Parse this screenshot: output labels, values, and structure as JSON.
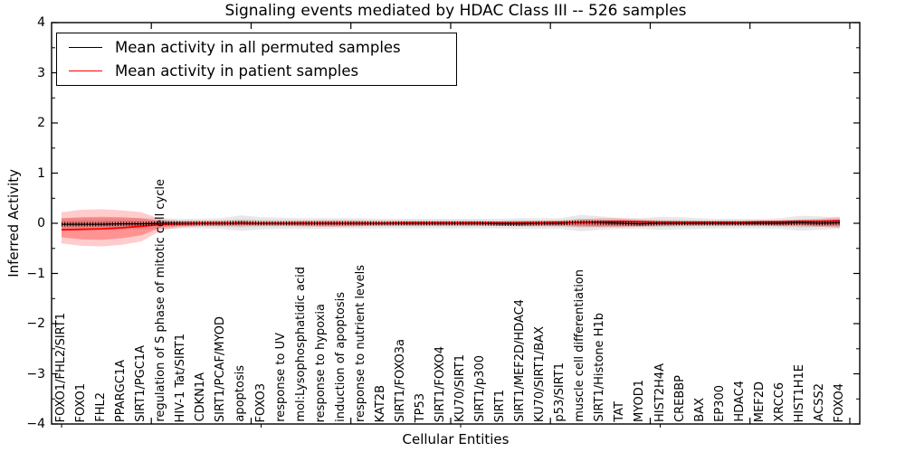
{
  "figure": {
    "title": "Signaling events mediated by HDAC Class III -- 526 samples",
    "xlabel": "Cellular Entities",
    "ylabel": "Inferred Activity"
  },
  "legend": {
    "position": "upper left",
    "items": [
      {
        "label": "Mean activity in all permuted samples",
        "color": "#000000"
      },
      {
        "label": "Mean activity in patient samples",
        "color": "#ff0000"
      }
    ]
  },
  "chart_data": {
    "type": "line",
    "title": "Signaling events mediated by HDAC Class III -- 526 samples",
    "xlabel": "Cellular Entities",
    "ylabel": "Inferred Activity",
    "ylim": [
      -4,
      4
    ],
    "ytick_labels": [
      "−4",
      "−3",
      "−2",
      "−1",
      "0",
      "1",
      "2",
      "3",
      "4"
    ],
    "grid": false,
    "legend_position": "upper left",
    "categories": [
      "FOXO1/FHL2/SIRT1",
      "FOXO1",
      "FHL2",
      "PPARGC1A",
      "SIRT1/PGC1A",
      "regulation of S phase of mitotic cell cycle",
      "HIV-1 Tat/SIRT1",
      "CDKN1A",
      "SIRT1/PCAF/MYOD",
      "apoptosis",
      "FOXO3",
      "response to UV",
      "mol:Lysophosphatidic acid",
      "response to hypoxia",
      "induction of apoptosis",
      "response to nutrient levels",
      "KAT2B",
      "SIRT1/FOXO3a",
      "TP53",
      "SIRT1/FOXO4",
      "KU70/SIRT1",
      "SIRT1/p300",
      "SIRT1",
      "SIRT1/MEF2D/HDAC4",
      "KU70/SIRT1/BAX",
      "p53/SIRT1",
      "muscle cell differentiation",
      "SIRT1/Histone H1b",
      "TAT",
      "MYOD1",
      "HIST2H4A",
      "CREBBP",
      "BAX",
      "EP300",
      "HDAC4",
      "MEF2D",
      "XRCC6",
      "HIST1H1E",
      "ACSS2",
      "FOXO4"
    ],
    "series": [
      {
        "name": "Mean activity in all permuted samples",
        "color": "#000000",
        "values": [
          -0.02,
          -0.02,
          -0.02,
          -0.01,
          -0.01,
          0.0,
          0.0,
          0.0,
          0.0,
          0.01,
          0.0,
          0.0,
          0.0,
          0.0,
          0.0,
          0.0,
          0.0,
          0.0,
          0.0,
          0.0,
          0.0,
          0.0,
          -0.01,
          -0.01,
          0.0,
          0.0,
          0.02,
          0.01,
          0.0,
          -0.01,
          0.0,
          0.0,
          0.0,
          0.0,
          0.0,
          0.0,
          0.0,
          0.01,
          0.0,
          0.01
        ]
      },
      {
        "name": "Mean activity in patient samples",
        "color": "#ff0000",
        "values": [
          -0.13,
          -0.12,
          -0.11,
          -0.09,
          -0.06,
          -0.02,
          -0.01,
          0.0,
          0.0,
          0.0,
          0.0,
          0.0,
          0.0,
          0.0,
          0.0,
          0.0,
          0.0,
          0.01,
          0.01,
          0.01,
          0.01,
          0.01,
          0.01,
          0.01,
          0.01,
          0.02,
          0.02,
          0.03,
          0.04,
          0.03,
          0.02,
          0.02,
          0.02,
          0.02,
          0.02,
          0.03,
          0.03,
          0.04,
          0.04,
          0.05
        ]
      }
    ],
    "bands": {
      "permuted": {
        "upper": [
          0.1,
          0.1,
          0.1,
          0.1,
          0.1,
          0.1,
          0.09,
          0.09,
          0.1,
          0.16,
          0.12,
          0.11,
          0.1,
          0.1,
          0.1,
          0.1,
          0.09,
          0.09,
          0.09,
          0.09,
          0.09,
          0.09,
          0.09,
          0.1,
          0.1,
          0.1,
          0.17,
          0.14,
          0.1,
          0.1,
          0.13,
          0.12,
          0.1,
          0.09,
          0.09,
          0.09,
          0.1,
          0.15,
          0.14,
          0.1
        ],
        "lower": [
          -0.14,
          -0.14,
          -0.13,
          -0.12,
          -0.12,
          -0.11,
          -0.1,
          -0.1,
          -0.11,
          -0.15,
          -0.12,
          -0.11,
          -0.11,
          -0.11,
          -0.1,
          -0.1,
          -0.1,
          -0.1,
          -0.1,
          -0.1,
          -0.1,
          -0.1,
          -0.1,
          -0.11,
          -0.11,
          -0.11,
          -0.16,
          -0.13,
          -0.11,
          -0.11,
          -0.13,
          -0.12,
          -0.11,
          -0.1,
          -0.1,
          -0.1,
          -0.11,
          -0.15,
          -0.13,
          -0.11
        ]
      },
      "patient_outer": {
        "upper": [
          0.22,
          0.27,
          0.28,
          0.26,
          0.22,
          0.08,
          0.05,
          0.05,
          0.05,
          0.05,
          0.04,
          0.04,
          0.05,
          0.06,
          0.06,
          0.05,
          0.04,
          0.04,
          0.04,
          0.04,
          0.04,
          0.04,
          0.04,
          0.05,
          0.05,
          0.06,
          0.08,
          0.1,
          0.1,
          0.08,
          0.06,
          0.05,
          0.05,
          0.05,
          0.05,
          0.05,
          0.06,
          0.07,
          0.09,
          0.13
        ],
        "lower": [
          -0.4,
          -0.45,
          -0.46,
          -0.43,
          -0.36,
          -0.14,
          -0.08,
          -0.06,
          -0.06,
          -0.06,
          -0.05,
          -0.05,
          -0.06,
          -0.07,
          -0.07,
          -0.06,
          -0.05,
          -0.05,
          -0.05,
          -0.05,
          -0.05,
          -0.05,
          -0.05,
          -0.06,
          -0.06,
          -0.06,
          -0.07,
          -0.08,
          -0.08,
          -0.07,
          -0.06,
          -0.05,
          -0.05,
          -0.05,
          -0.05,
          -0.05,
          -0.06,
          -0.06,
          -0.07,
          -0.09
        ]
      },
      "patient_inner": {
        "upper": [
          0.1,
          0.12,
          0.13,
          0.12,
          0.1,
          0.04,
          0.03,
          0.03,
          0.03,
          0.03,
          0.02,
          0.02,
          0.03,
          0.03,
          0.03,
          0.03,
          0.02,
          0.02,
          0.02,
          0.02,
          0.02,
          0.02,
          0.02,
          0.03,
          0.03,
          0.03,
          0.04,
          0.06,
          0.06,
          0.05,
          0.03,
          0.03,
          0.03,
          0.03,
          0.03,
          0.03,
          0.03,
          0.04,
          0.05,
          0.08
        ],
        "lower": [
          -0.28,
          -0.32,
          -0.33,
          -0.3,
          -0.24,
          -0.08,
          -0.05,
          -0.04,
          -0.04,
          -0.04,
          -0.03,
          -0.03,
          -0.04,
          -0.04,
          -0.04,
          -0.04,
          -0.03,
          -0.03,
          -0.03,
          -0.03,
          -0.03,
          -0.03,
          -0.03,
          -0.04,
          -0.04,
          -0.04,
          -0.05,
          -0.06,
          -0.06,
          -0.05,
          -0.04,
          -0.03,
          -0.03,
          -0.03,
          -0.03,
          -0.03,
          -0.04,
          -0.04,
          -0.05,
          -0.06
        ]
      }
    }
  }
}
